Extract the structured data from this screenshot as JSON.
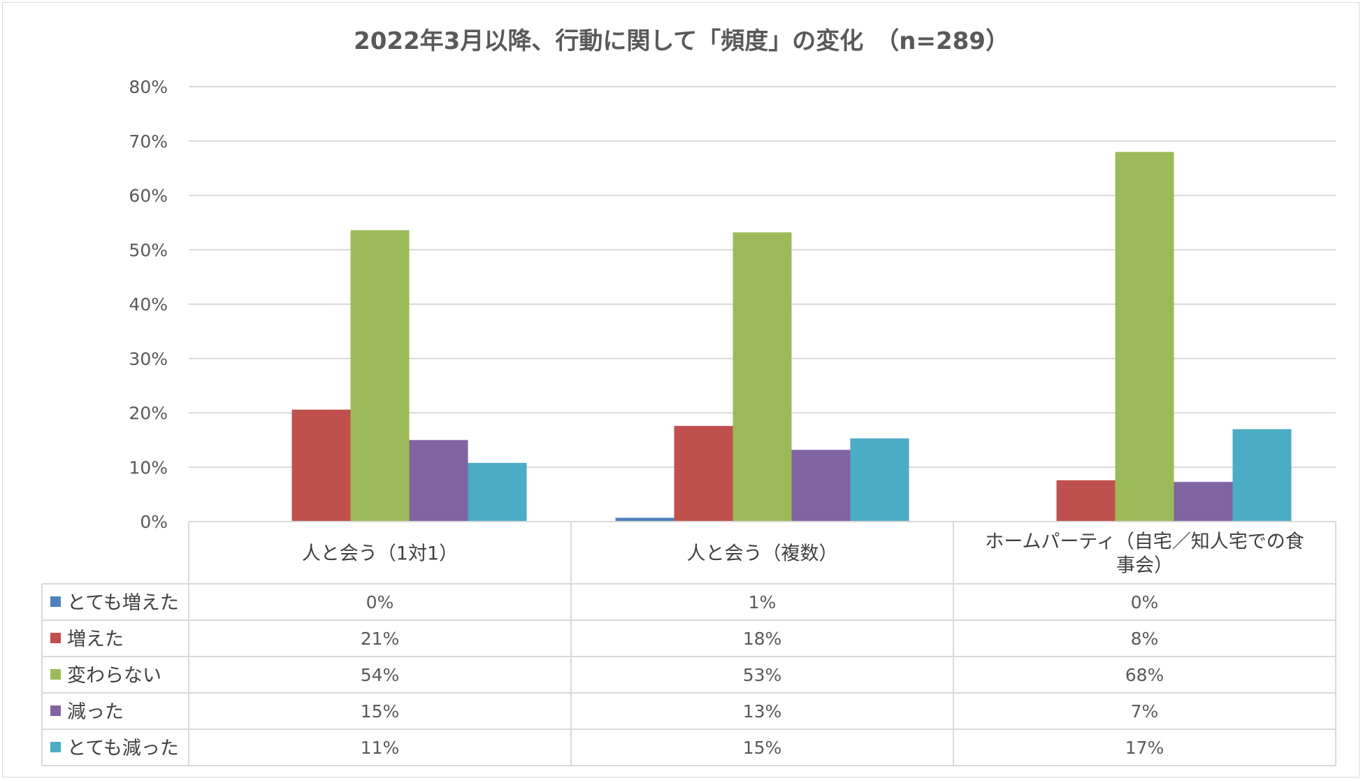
{
  "chart_data": {
    "type": "bar",
    "title": "2022年3月以降、行動に関して「頻度」の変化　（n=289）",
    "categories": [
      "人と会う（1対1）",
      "人と会う（複数）",
      "ホームパーティ（自宅／知人宅での食事会）"
    ],
    "category_label_lines": [
      [
        "人と会う（1対1）"
      ],
      [
        "人と会う（複数）"
      ],
      [
        "ホームパーティ（自宅／知人宅での食",
        "事会）"
      ]
    ],
    "yticks": [
      "0%",
      "10%",
      "20%",
      "30%",
      "40%",
      "50%",
      "60%",
      "70%",
      "80%"
    ],
    "ylim": [
      0,
      80
    ],
    "grid": true,
    "legend": "data-table",
    "series": [
      {
        "name": "とても増えた",
        "color": "#4f81bd",
        "values": [
          0,
          0.7,
          0
        ],
        "labels": [
          "0%",
          "1%",
          "0%"
        ]
      },
      {
        "name": "増えた",
        "color": "#c0504d",
        "values": [
          20.6,
          17.6,
          7.6
        ],
        "labels": [
          "21%",
          "18%",
          "8%"
        ]
      },
      {
        "name": "変わらない",
        "color": "#9bbb59",
        "values": [
          53.6,
          53.2,
          68.0
        ],
        "labels": [
          "54%",
          "53%",
          "68%"
        ]
      },
      {
        "name": "減った",
        "color": "#8064a2",
        "values": [
          15.0,
          13.2,
          7.3
        ],
        "labels": [
          "15%",
          "13%",
          "7%"
        ]
      },
      {
        "name": "とても減った",
        "color": "#4bacc6",
        "values": [
          10.8,
          15.3,
          17.0
        ],
        "labels": [
          "11%",
          "15%",
          "17%"
        ]
      }
    ]
  }
}
